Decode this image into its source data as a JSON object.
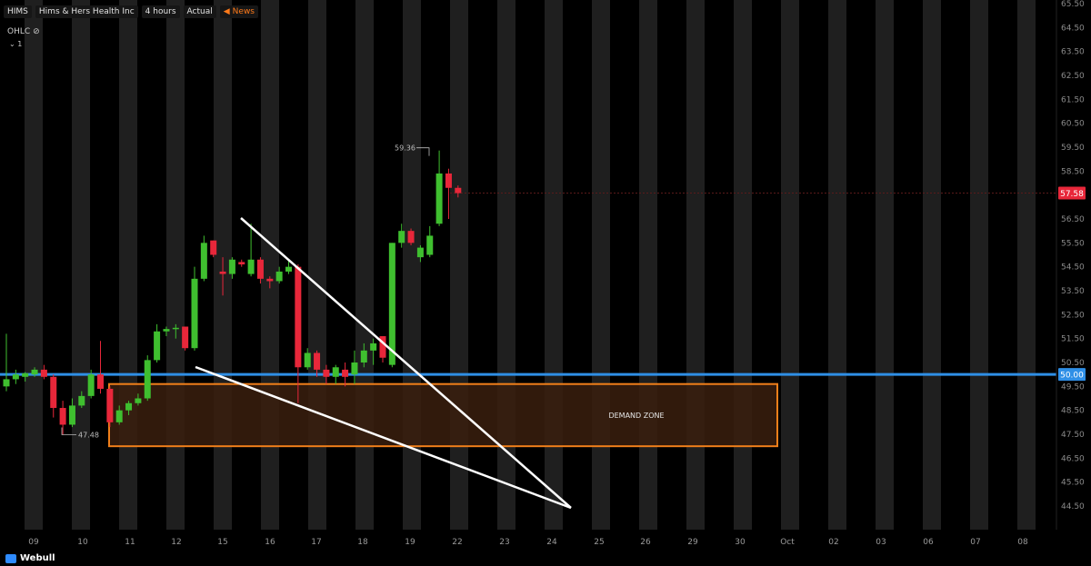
{
  "header": {
    "symbol": "HIMS",
    "company": "Hims & Hers Health Inc",
    "interval": "4 hours",
    "price_mode": "Actual",
    "news_label": "News"
  },
  "indicator": {
    "name": "OHLC",
    "toggle": "1"
  },
  "brand": {
    "name": "Webull"
  },
  "chart_data": {
    "type": "candlestick",
    "symbol": "HIMS",
    "y_range": [
      44.0,
      65.5
    ],
    "y_ticks": [
      "65.50",
      "64.50",
      "63.50",
      "62.50",
      "61.50",
      "60.50",
      "59.50",
      "58.50",
      "57.50",
      "56.50",
      "55.50",
      "54.50",
      "53.50",
      "52.50",
      "51.50",
      "50.50",
      "49.50",
      "48.50",
      "47.50",
      "46.50",
      "45.50",
      "44.50"
    ],
    "x_labels": [
      "09",
      "10",
      "11",
      "12",
      "15",
      "16",
      "17",
      "18",
      "19",
      "22",
      "23",
      "24",
      "25",
      "26",
      "29",
      "30",
      "Oct",
      "02",
      "03",
      "06",
      "07",
      "08"
    ],
    "candles": [
      {
        "o": 49.5,
        "h": 51.7,
        "l": 49.3,
        "c": 49.8
      },
      {
        "o": 49.8,
        "h": 50.2,
        "l": 49.6,
        "c": 50.0
      },
      {
        "o": 49.9,
        "h": 50.1,
        "l": 49.7,
        "c": 50.05
      },
      {
        "o": 50.0,
        "h": 50.3,
        "l": 49.9,
        "c": 50.2
      },
      {
        "o": 50.2,
        "h": 50.4,
        "l": 49.8,
        "c": 49.9
      },
      {
        "o": 49.9,
        "h": 50.0,
        "l": 48.2,
        "c": 48.6
      },
      {
        "o": 48.6,
        "h": 48.9,
        "l": 47.48,
        "c": 47.9
      },
      {
        "o": 47.9,
        "h": 49.0,
        "l": 47.8,
        "c": 48.7
      },
      {
        "o": 48.7,
        "h": 49.3,
        "l": 48.6,
        "c": 49.1
      },
      {
        "o": 49.1,
        "h": 50.2,
        "l": 49.0,
        "c": 50.0
      },
      {
        "o": 50.0,
        "h": 51.4,
        "l": 49.2,
        "c": 49.4
      },
      {
        "o": 49.4,
        "h": 49.5,
        "l": 47.8,
        "c": 48.0
      },
      {
        "o": 48.0,
        "h": 48.7,
        "l": 47.9,
        "c": 48.5
      },
      {
        "o": 48.5,
        "h": 48.9,
        "l": 48.3,
        "c": 48.8
      },
      {
        "o": 48.8,
        "h": 49.2,
        "l": 48.7,
        "c": 49.0
      },
      {
        "o": 49.0,
        "h": 50.8,
        "l": 48.9,
        "c": 50.6
      },
      {
        "o": 50.6,
        "h": 52.1,
        "l": 50.5,
        "c": 51.8
      },
      {
        "o": 51.8,
        "h": 52.0,
        "l": 51.6,
        "c": 51.9
      },
      {
        "o": 51.9,
        "h": 52.1,
        "l": 51.5,
        "c": 51.95
      },
      {
        "o": 52.0,
        "h": 52.0,
        "l": 51.0,
        "c": 51.1
      },
      {
        "o": 51.1,
        "h": 54.5,
        "l": 51.0,
        "c": 54.0
      },
      {
        "o": 54.0,
        "h": 55.8,
        "l": 53.9,
        "c": 55.5
      },
      {
        "o": 55.6,
        "h": 55.6,
        "l": 54.9,
        "c": 55.0
      },
      {
        "o": 54.3,
        "h": 54.9,
        "l": 53.3,
        "c": 54.2
      },
      {
        "o": 54.2,
        "h": 54.9,
        "l": 54.0,
        "c": 54.8
      },
      {
        "o": 54.7,
        "h": 54.8,
        "l": 54.5,
        "c": 54.6
      },
      {
        "o": 54.2,
        "h": 56.3,
        "l": 54.1,
        "c": 54.8
      },
      {
        "o": 54.8,
        "h": 54.9,
        "l": 53.8,
        "c": 54.0
      },
      {
        "o": 54.0,
        "h": 54.1,
        "l": 53.6,
        "c": 53.9
      },
      {
        "o": 53.9,
        "h": 54.5,
        "l": 53.8,
        "c": 54.3
      },
      {
        "o": 54.3,
        "h": 54.8,
        "l": 54.2,
        "c": 54.5
      },
      {
        "o": 54.5,
        "h": 54.6,
        "l": 48.8,
        "c": 50.3
      },
      {
        "o": 50.3,
        "h": 51.1,
        "l": 50.2,
        "c": 50.9
      },
      {
        "o": 50.9,
        "h": 51.0,
        "l": 49.9,
        "c": 50.2
      },
      {
        "o": 50.2,
        "h": 50.4,
        "l": 49.6,
        "c": 49.9
      },
      {
        "o": 49.9,
        "h": 50.4,
        "l": 49.6,
        "c": 50.3
      },
      {
        "o": 50.2,
        "h": 50.5,
        "l": 49.5,
        "c": 49.9
      },
      {
        "o": 50.0,
        "h": 51.0,
        "l": 49.6,
        "c": 50.5
      },
      {
        "o": 50.5,
        "h": 51.3,
        "l": 50.3,
        "c": 51.0
      },
      {
        "o": 51.0,
        "h": 51.5,
        "l": 50.4,
        "c": 51.3
      },
      {
        "o": 51.6,
        "h": 51.6,
        "l": 50.5,
        "c": 50.7
      },
      {
        "o": 50.4,
        "h": 55.5,
        "l": 50.3,
        "c": 55.5
      },
      {
        "o": 55.5,
        "h": 56.3,
        "l": 55.3,
        "c": 56.0
      },
      {
        "o": 56.0,
        "h": 56.1,
        "l": 55.4,
        "c": 55.5
      },
      {
        "o": 54.9,
        "h": 55.4,
        "l": 54.7,
        "c": 55.3
      },
      {
        "o": 55.0,
        "h": 56.2,
        "l": 54.9,
        "c": 55.8
      },
      {
        "o": 56.3,
        "h": 59.36,
        "l": 56.2,
        "c": 58.4
      },
      {
        "o": 58.4,
        "h": 58.6,
        "l": 56.5,
        "c": 57.8
      },
      {
        "o": 57.8,
        "h": 57.9,
        "l": 57.4,
        "c": 57.58
      }
    ],
    "annotations": {
      "high_label": "59.36",
      "low_label": "47.48",
      "current_price": "57.58",
      "horizontal_line": "50.00",
      "zone_label": "DEMAND ZONE",
      "zone_range": [
        47.0,
        49.6
      ]
    },
    "colors": {
      "up": "#3fbf2f",
      "down": "#e8273a",
      "horizontal_line": "#2f8fe6",
      "zone_border": "#f07f1a",
      "zone_fill": "#3a1f0e",
      "background": "#000000",
      "alt_column": "#1f1f1f",
      "trendline": "#ffffff"
    }
  }
}
